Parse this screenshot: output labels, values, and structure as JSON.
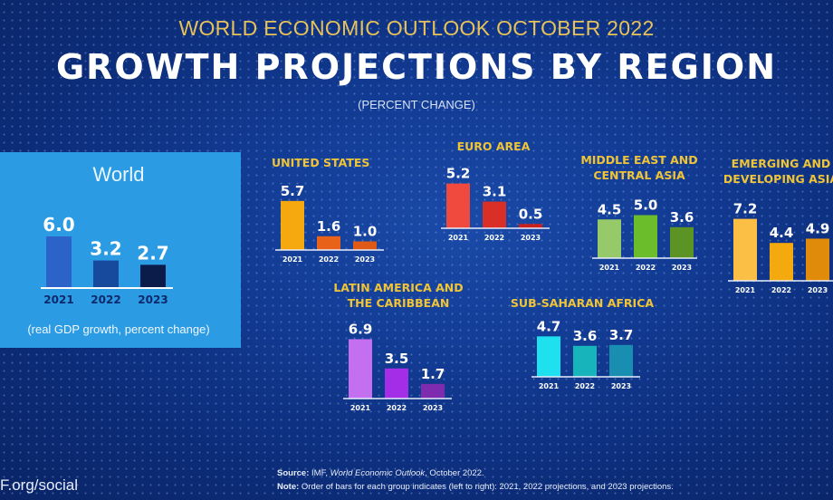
{
  "header": {
    "supertitle": "WORLD ECONOMIC OUTLOOK OCTOBER 2022",
    "title": "GROWTH PROJECTIONS BY REGION",
    "subtitle": "(PERCENT CHANGE)"
  },
  "world_panel": {
    "title": "World",
    "note": "(real GDP growth, percent change)"
  },
  "footer": {
    "site": "F.org/social",
    "source_label": "Source:",
    "source_text_pre": "IMF, ",
    "source_text_italic": "World Economic Outlook",
    "source_text_post": ", October 2022.",
    "note_label": "Note:",
    "note_text": "Order of bars for each group indicates (left to right): 2021, 2022 projections, and 2023 projections."
  },
  "chart_data": {
    "type": "bar",
    "title": "GROWTH PROJECTIONS BY REGION",
    "subtitle": "(PERCENT CHANGE)",
    "categories": [
      "2021",
      "2022",
      "2023"
    ],
    "ylabel": "real GDP growth, percent change",
    "groups": [
      {
        "name": "World",
        "values": [
          6.0,
          3.2,
          2.7
        ],
        "labels": [
          "6.0",
          "3.2",
          "2.7"
        ],
        "colors": [
          "#2b63c9",
          "#174a9c",
          "#0b1b4a"
        ]
      },
      {
        "name": "UNITED STATES",
        "values": [
          5.7,
          1.6,
          1.0
        ],
        "labels": [
          "5.7",
          "1.6",
          "1.0"
        ],
        "colors": [
          "#f5a90f",
          "#e8621a",
          "#de5a16"
        ]
      },
      {
        "name": "EURO AREA",
        "values": [
          5.2,
          3.1,
          0.5
        ],
        "labels": [
          "5.2",
          "3.1",
          "0.5"
        ],
        "colors": [
          "#f04a3e",
          "#d92f27",
          "#c8201c"
        ]
      },
      {
        "name": "MIDDLE EAST AND CENTRAL ASIA",
        "values": [
          4.5,
          5.0,
          3.6
        ],
        "labels": [
          "4.5",
          "5.0",
          "3.6"
        ],
        "colors": [
          "#95c96a",
          "#6cbd2c",
          "#5b9324"
        ]
      },
      {
        "name": "EMERGING AND DEVELOPING ASIA",
        "values": [
          7.2,
          4.4,
          4.9
        ],
        "labels": [
          "7.2",
          "4.4",
          "4.9"
        ],
        "colors": [
          "#fbbf45",
          "#f4a90e",
          "#e08b0a"
        ]
      },
      {
        "name": "LATIN AMERICA AND THE CARIBBEAN",
        "values": [
          6.9,
          3.5,
          1.7
        ],
        "labels": [
          "6.9",
          "3.5",
          "1.7"
        ],
        "colors": [
          "#c46ef0",
          "#a42de8",
          "#7e2bb0"
        ]
      },
      {
        "name": "SUB-SAHARAN AFRICA",
        "values": [
          4.7,
          3.6,
          3.7
        ],
        "labels": [
          "4.7",
          "3.6",
          "3.7"
        ],
        "colors": [
          "#1ee0ee",
          "#18b4bc",
          "#188fb0"
        ]
      }
    ]
  }
}
